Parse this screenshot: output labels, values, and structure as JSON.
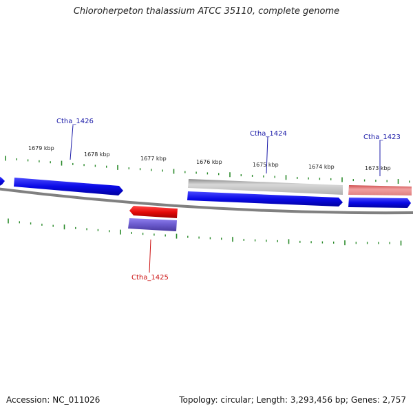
{
  "title": "Chloroherpeton thalassium ATCC 35110, complete genome",
  "footer": {
    "accession": "Accession: NC_011026",
    "stats": "Topology: circular; Length: 3,293,456 bp; Genes: 2,757"
  },
  "scale_labels": [
    "1679 kbp",
    "1678 kbp",
    "1677 kbp",
    "1676 kbp",
    "1675 kbp",
    "1674 kbp",
    "1673 kbp"
  ],
  "gene_labels": [
    {
      "text": "Ctha_1426",
      "color": "#1a1aa8"
    },
    {
      "text": "Ctha_1424",
      "color": "#1a1aa8"
    },
    {
      "text": "Ctha_1423",
      "color": "#1a1aa8"
    },
    {
      "text": "Ctha_1425",
      "color": "#cc1111"
    }
  ],
  "colors": {
    "cds_forward": "#1010e0",
    "cds_reverse": "#e01010",
    "gene_grey": "#b8b8b8",
    "gene_pink": "#e07a7a",
    "gene_purple": "#6a5acd",
    "backbone": "#808080",
    "tick": "#2a8a2a"
  }
}
